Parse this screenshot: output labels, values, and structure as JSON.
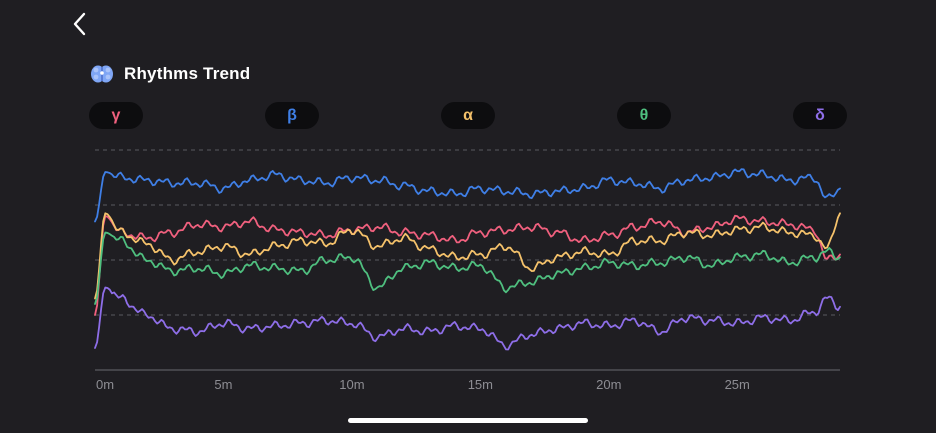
{
  "header": {
    "title": "Rhythms Trend",
    "icon": "brain-icon",
    "back_icon": "chevron-left-icon"
  },
  "bands": [
    {
      "symbol": "γ",
      "color": "#f0607e"
    },
    {
      "symbol": "β",
      "color": "#3f7fe6"
    },
    {
      "symbol": "α",
      "color": "#f5c26b"
    },
    {
      "symbol": "θ",
      "color": "#4fbf7f"
    },
    {
      "symbol": "δ",
      "color": "#8e6ee8"
    }
  ],
  "chart_data": {
    "type": "line",
    "x_unit": "minutes",
    "xlim": [
      0,
      29
    ],
    "x_ticks": [
      0,
      5,
      10,
      15,
      20,
      25
    ],
    "x_tick_labels": [
      "0m",
      "5m",
      "10m",
      "15m",
      "20m",
      "25m"
    ],
    "ylim": [
      0,
      4
    ],
    "y_gridlines": [
      1,
      2,
      3,
      4
    ],
    "y_tick_labels_shown": false,
    "legend": "none",
    "series": [
      {
        "name": "β",
        "color": "#3f7fe6",
        "points": [
          [
            0,
            2.7
          ],
          [
            0.4,
            3.6
          ],
          [
            1,
            3.5
          ],
          [
            2,
            3.45
          ],
          [
            3,
            3.4
          ],
          [
            4,
            3.4
          ],
          [
            5,
            3.3
          ],
          [
            6,
            3.45
          ],
          [
            7,
            3.55
          ],
          [
            8,
            3.45
          ],
          [
            9,
            3.4
          ],
          [
            10,
            3.5
          ],
          [
            11,
            3.45
          ],
          [
            12,
            3.35
          ],
          [
            13,
            3.25
          ],
          [
            14,
            3.2
          ],
          [
            15,
            3.3
          ],
          [
            16,
            3.25
          ],
          [
            17,
            3.2
          ],
          [
            18,
            3.25
          ],
          [
            19,
            3.3
          ],
          [
            20,
            3.45
          ],
          [
            21,
            3.4
          ],
          [
            22,
            3.3
          ],
          [
            23,
            3.45
          ],
          [
            24,
            3.5
          ],
          [
            25,
            3.6
          ],
          [
            26,
            3.55
          ],
          [
            27,
            3.45
          ],
          [
            28,
            3.5
          ],
          [
            28.5,
            3.1
          ],
          [
            29,
            3.3
          ]
        ]
      },
      {
        "name": "γ",
        "color": "#f0607e",
        "points": [
          [
            0,
            1.0
          ],
          [
            0.4,
            2.8
          ],
          [
            1,
            2.5
          ],
          [
            2,
            2.4
          ],
          [
            3,
            2.5
          ],
          [
            4,
            2.65
          ],
          [
            5,
            2.6
          ],
          [
            6,
            2.7
          ],
          [
            7,
            2.55
          ],
          [
            8,
            2.5
          ],
          [
            9,
            2.45
          ],
          [
            10,
            2.55
          ],
          [
            11,
            2.6
          ],
          [
            12,
            2.5
          ],
          [
            13,
            2.45
          ],
          [
            14,
            2.35
          ],
          [
            15,
            2.5
          ],
          [
            16,
            2.55
          ],
          [
            17,
            2.6
          ],
          [
            18,
            2.5
          ],
          [
            19,
            2.35
          ],
          [
            20,
            2.45
          ],
          [
            21,
            2.6
          ],
          [
            22,
            2.7
          ],
          [
            23,
            2.5
          ],
          [
            24,
            2.6
          ],
          [
            25,
            2.75
          ],
          [
            26,
            2.7
          ],
          [
            27,
            2.65
          ],
          [
            28,
            2.55
          ],
          [
            28.5,
            2.0
          ],
          [
            29,
            2.1
          ]
        ]
      },
      {
        "name": "α",
        "color": "#f5c26b",
        "points": [
          [
            0,
            1.3
          ],
          [
            0.4,
            2.85
          ],
          [
            1,
            2.5
          ],
          [
            2,
            2.3
          ],
          [
            3,
            2.0
          ],
          [
            4,
            2.15
          ],
          [
            5,
            2.25
          ],
          [
            6,
            2.1
          ],
          [
            7,
            2.25
          ],
          [
            8,
            2.35
          ],
          [
            9,
            2.3
          ],
          [
            10,
            2.55
          ],
          [
            11,
            2.25
          ],
          [
            12,
            2.4
          ],
          [
            13,
            2.2
          ],
          [
            14,
            2.05
          ],
          [
            15,
            2.1
          ],
          [
            16,
            2.25
          ],
          [
            17,
            1.85
          ],
          [
            18,
            2.05
          ],
          [
            19,
            2.15
          ],
          [
            20,
            2.1
          ],
          [
            21,
            2.35
          ],
          [
            22,
            2.35
          ],
          [
            23,
            2.5
          ],
          [
            24,
            2.45
          ],
          [
            25,
            2.55
          ],
          [
            26,
            2.6
          ],
          [
            27,
            2.5
          ],
          [
            28,
            2.45
          ],
          [
            28.5,
            2.2
          ],
          [
            29,
            2.85
          ]
        ]
      },
      {
        "name": "θ",
        "color": "#4fbf7f",
        "points": [
          [
            0,
            1.2
          ],
          [
            0.4,
            2.5
          ],
          [
            1,
            2.35
          ],
          [
            2,
            2.0
          ],
          [
            3,
            1.8
          ],
          [
            4,
            1.85
          ],
          [
            5,
            1.75
          ],
          [
            6,
            1.9
          ],
          [
            7,
            1.85
          ],
          [
            8,
            1.8
          ],
          [
            9,
            2.0
          ],
          [
            10,
            2.05
          ],
          [
            11,
            1.5
          ],
          [
            12,
            1.85
          ],
          [
            13,
            1.95
          ],
          [
            14,
            1.85
          ],
          [
            15,
            1.9
          ],
          [
            16,
            1.5
          ],
          [
            17,
            1.6
          ],
          [
            18,
            1.75
          ],
          [
            19,
            1.85
          ],
          [
            20,
            1.95
          ],
          [
            21,
            1.9
          ],
          [
            22,
            1.95
          ],
          [
            23,
            2.05
          ],
          [
            24,
            1.9
          ],
          [
            25,
            2.05
          ],
          [
            26,
            2.1
          ],
          [
            27,
            1.95
          ],
          [
            28,
            2.05
          ],
          [
            28.5,
            2.15
          ],
          [
            29,
            2.05
          ]
        ]
      },
      {
        "name": "δ",
        "color": "#8e6ee8",
        "points": [
          [
            0,
            0.4
          ],
          [
            0.4,
            1.5
          ],
          [
            1,
            1.3
          ],
          [
            2,
            1.0
          ],
          [
            3,
            0.75
          ],
          [
            4,
            0.7
          ],
          [
            5,
            0.85
          ],
          [
            6,
            0.75
          ],
          [
            7,
            0.8
          ],
          [
            8,
            0.85
          ],
          [
            9,
            0.9
          ],
          [
            10,
            0.85
          ],
          [
            11,
            0.6
          ],
          [
            12,
            0.75
          ],
          [
            13,
            0.7
          ],
          [
            14,
            0.8
          ],
          [
            15,
            0.75
          ],
          [
            16,
            0.45
          ],
          [
            17,
            0.65
          ],
          [
            18,
            0.75
          ],
          [
            19,
            0.85
          ],
          [
            20,
            0.8
          ],
          [
            21,
            0.9
          ],
          [
            22,
            0.7
          ],
          [
            23,
            0.95
          ],
          [
            24,
            0.9
          ],
          [
            25,
            0.85
          ],
          [
            26,
            0.95
          ],
          [
            27,
            0.9
          ],
          [
            28,
            1.05
          ],
          [
            28.5,
            1.3
          ],
          [
            29,
            1.15
          ]
        ]
      }
    ]
  }
}
